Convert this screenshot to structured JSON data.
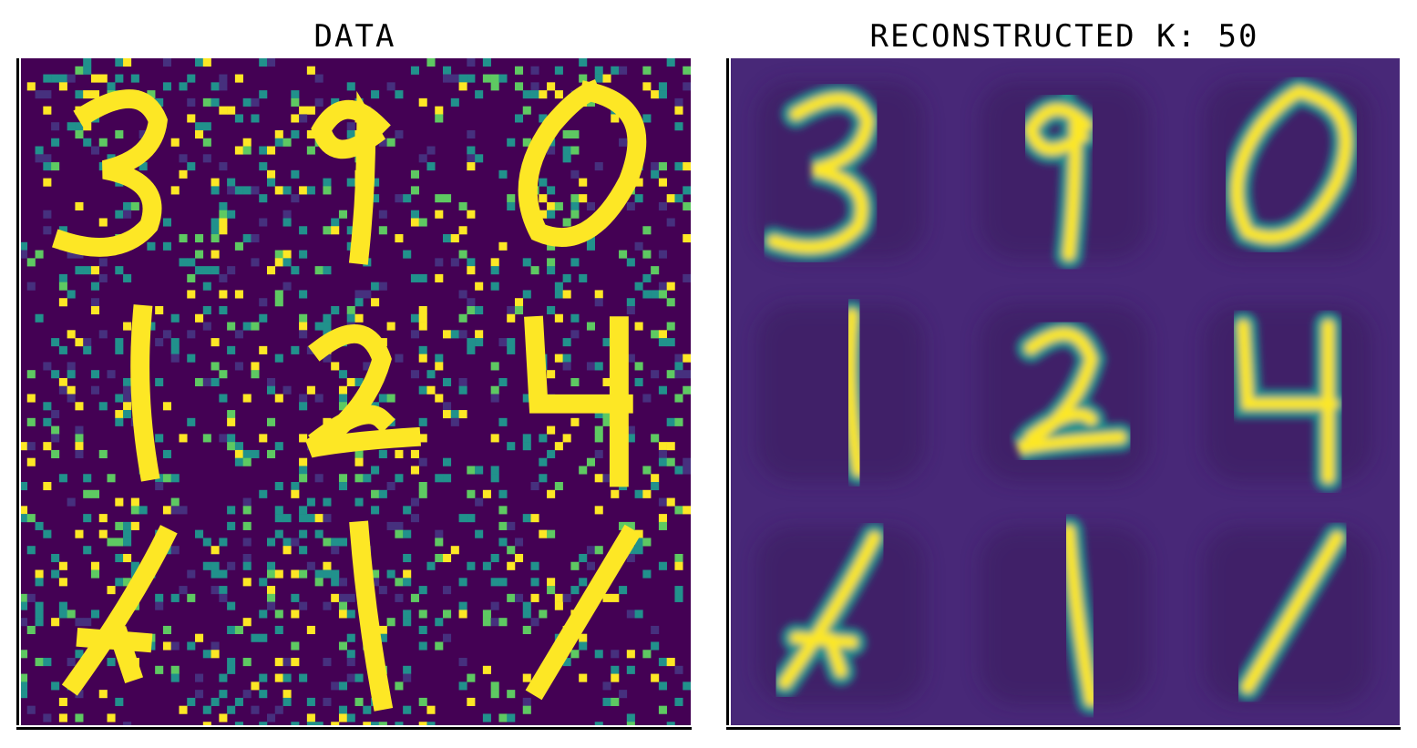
{
  "figure": {
    "left_title": "DATA",
    "right_title": "RECONSTRUCTED K: 50"
  },
  "colors": {
    "background": "#440154",
    "low": "#46307e",
    "mid": "#21918c",
    "high": "#5ec962",
    "peak": "#fde725",
    "reconstructed_background": "#482878"
  },
  "digits": {
    "grid": [
      "3",
      "9",
      "0",
      "1",
      "2",
      "4",
      "4",
      "1",
      "1"
    ]
  }
}
